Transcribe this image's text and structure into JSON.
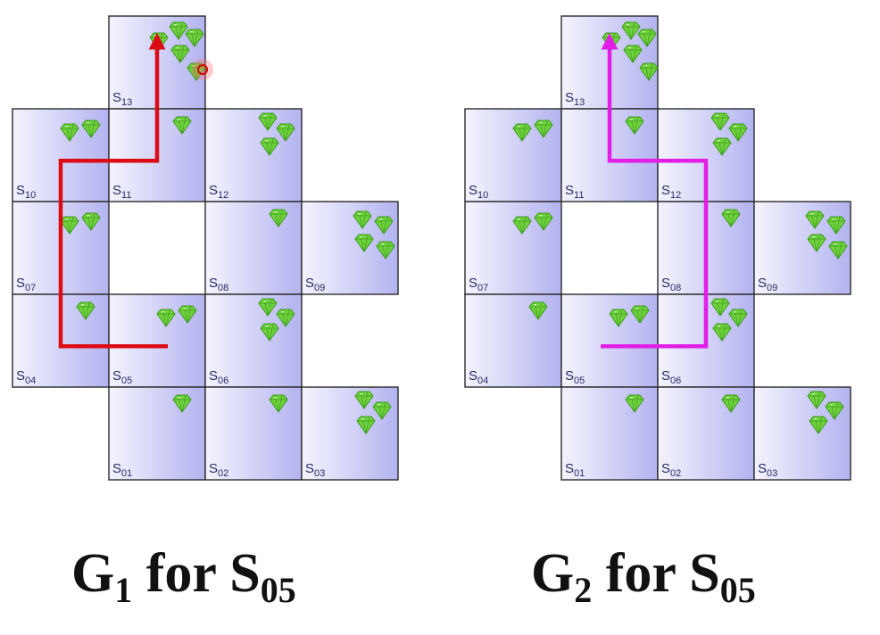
{
  "colors": {
    "cell_light": "#f4f4fe",
    "cell_dark": "#b3b3f0",
    "cell_border": "#2b2b2b",
    "gem": "#6fd23c",
    "gem_dark": "#3c9b1e",
    "path_left": "#dc0b14",
    "path_right": "#e11de6"
  },
  "cells": [
    {
      "id": "S13",
      "label_main": "S",
      "label_sub": "13",
      "col": 1,
      "row": 0,
      "gems": 5
    },
    {
      "id": "S10",
      "label_main": "S",
      "label_sub": "10",
      "col": 0,
      "row": 1,
      "gems": 2
    },
    {
      "id": "S11",
      "label_main": "S",
      "label_sub": "11",
      "col": 1,
      "row": 1,
      "gems": 1
    },
    {
      "id": "S12",
      "label_main": "S",
      "label_sub": "12",
      "col": 2,
      "row": 1,
      "gems": 3
    },
    {
      "id": "S07",
      "label_main": "S",
      "label_sub": "07",
      "col": 0,
      "row": 2,
      "gems": 2
    },
    {
      "id": "S08",
      "label_main": "S",
      "label_sub": "08",
      "col": 2,
      "row": 2,
      "gems": 1
    },
    {
      "id": "S09",
      "label_main": "S",
      "label_sub": "09",
      "col": 3,
      "row": 2,
      "gems": 4
    },
    {
      "id": "S04",
      "label_main": "S",
      "label_sub": "04",
      "col": 0,
      "row": 3,
      "gems": 1
    },
    {
      "id": "S05",
      "label_main": "S",
      "label_sub": "05",
      "col": 1,
      "row": 3,
      "gems": 2
    },
    {
      "id": "S06",
      "label_main": "S",
      "label_sub": "06",
      "col": 2,
      "row": 3,
      "gems": 3
    },
    {
      "id": "S01",
      "label_main": "S",
      "label_sub": "01",
      "col": 1,
      "row": 4,
      "gems": 1
    },
    {
      "id": "S02",
      "label_main": "S",
      "label_sub": "02",
      "col": 2,
      "row": 4,
      "gems": 1
    },
    {
      "id": "S03",
      "label_main": "S",
      "label_sub": "03",
      "col": 3,
      "row": 4,
      "gems": 3
    }
  ],
  "grids": [
    {
      "id": "g1",
      "caption": {
        "main": "G",
        "main_sub": "1",
        "middle": " for ",
        "state": "S",
        "state_sub": "05"
      },
      "path_color_key": "path_left",
      "path": [
        "S05",
        "S04",
        "S07",
        "S10",
        "S11",
        "S13"
      ]
    },
    {
      "id": "g2",
      "caption": {
        "main": "G",
        "main_sub": "2",
        "middle": " for ",
        "state": "S",
        "state_sub": "05"
      },
      "path_color_key": "path_right",
      "path": [
        "S05",
        "S06",
        "S08",
        "S12",
        "S11",
        "S13"
      ]
    }
  ]
}
